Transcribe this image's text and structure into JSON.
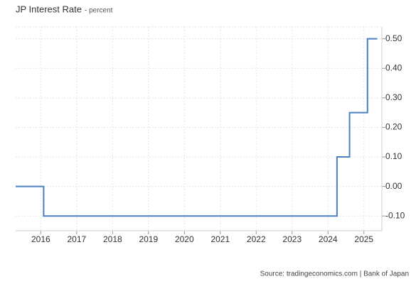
{
  "chart_data": {
    "type": "step-line",
    "title": "JP Interest Rate",
    "subtitle": "- percent",
    "source": "Source: tradingeconomics.com | Bank of Japan",
    "x": [
      2015.3,
      2016.08,
      2024.25,
      2024.6,
      2025.1,
      2025.37
    ],
    "series": [
      {
        "color": "#4a7fc1",
        "values": [
          0,
          -0.1,
          0.1,
          0.25,
          0.5,
          0.5
        ]
      }
    ],
    "xlim": [
      2015.3,
      2025.5
    ],
    "xticks": [
      2016,
      2017,
      2018,
      2019,
      2020,
      2021,
      2022,
      2023,
      2024,
      2025
    ],
    "ylim": [
      -0.15,
      0.54
    ],
    "yticks": [
      {
        "value": -0.1,
        "label": "-0.10"
      },
      {
        "value": 0,
        "label": "0.00"
      },
      {
        "value": 0.1,
        "label": "0.10"
      },
      {
        "value": 0.2,
        "label": "0.20"
      },
      {
        "value": 0.3,
        "label": "0.30"
      },
      {
        "value": 0.4,
        "label": "0.40"
      },
      {
        "value": 0.5,
        "label": "0.50"
      }
    ],
    "grid": true
  }
}
